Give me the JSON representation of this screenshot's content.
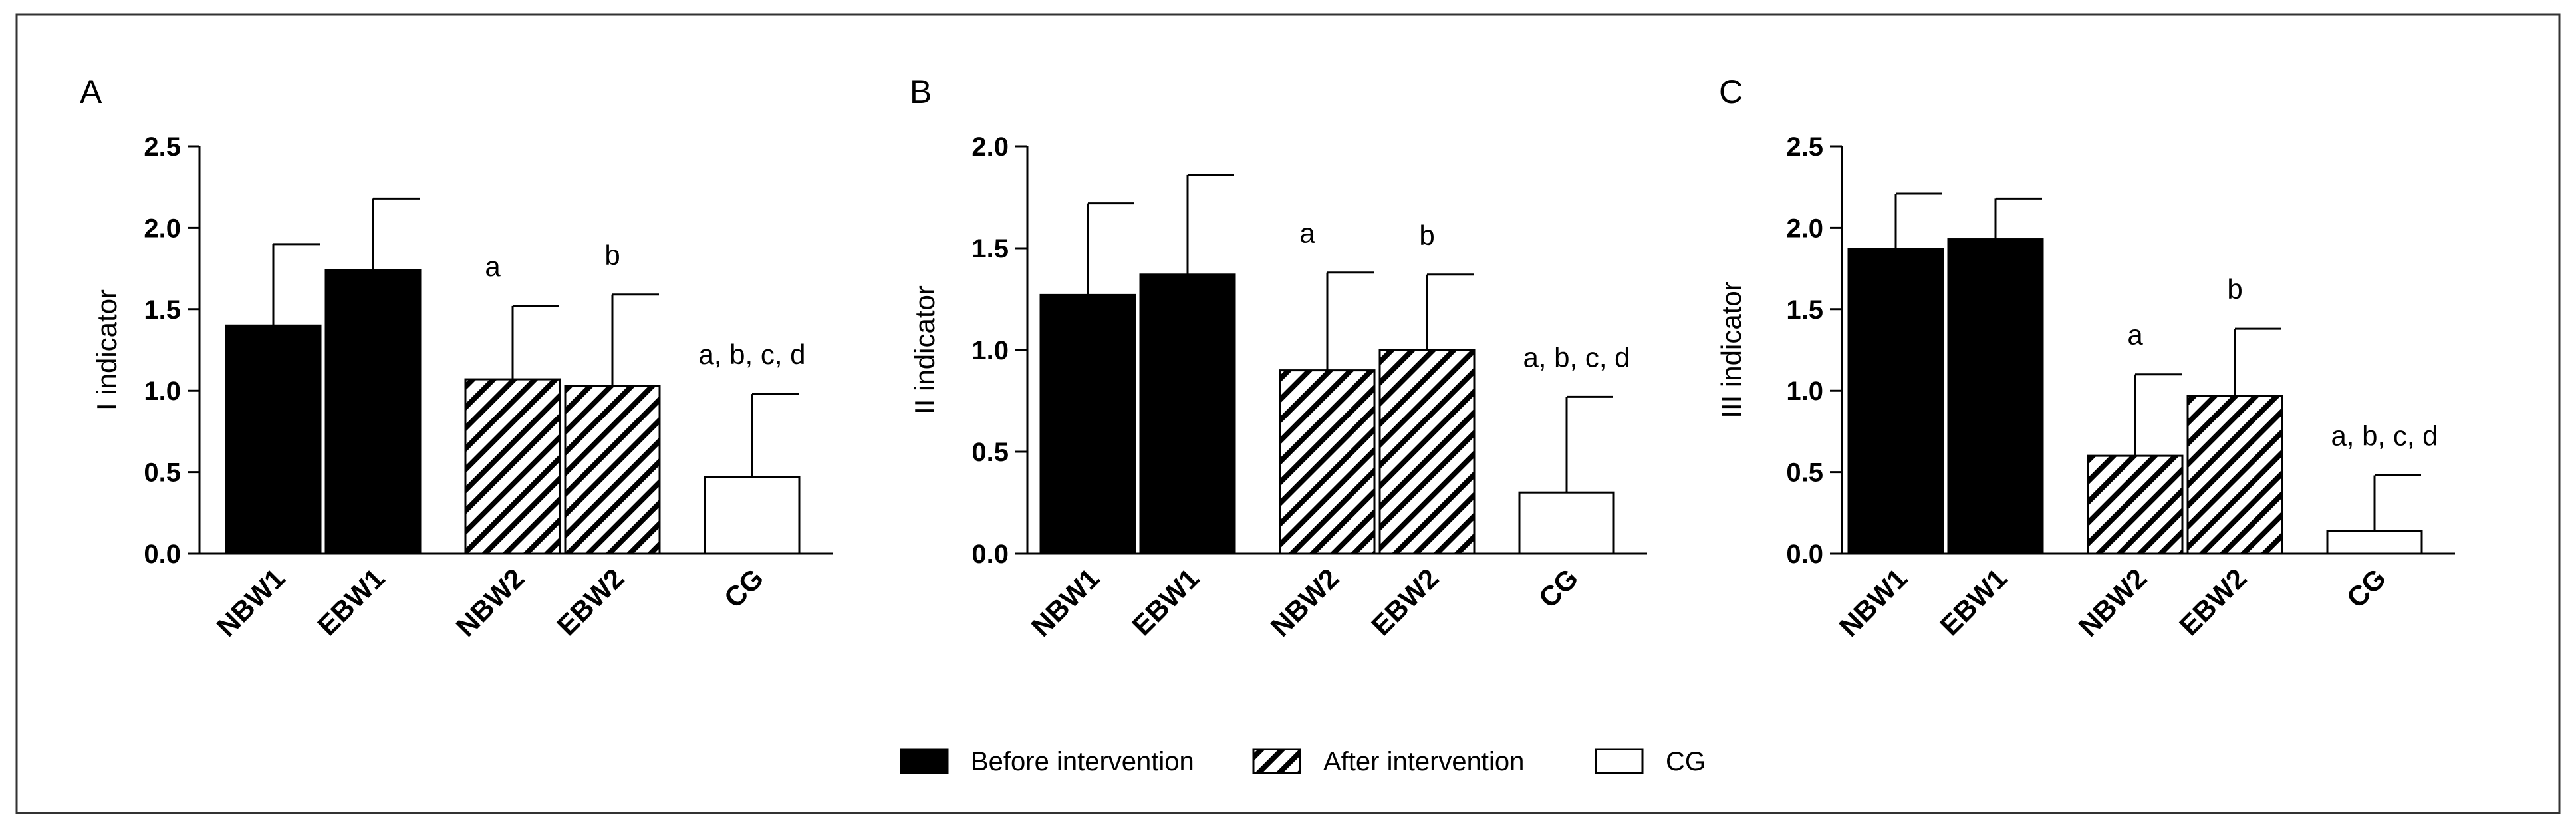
{
  "chart_data": [
    {
      "type": "bar",
      "panel": "A",
      "ylabel": "I indicator",
      "ylim": [
        0,
        2.5
      ],
      "yticks": [
        "0.0",
        "0.5",
        "1.0",
        "1.5",
        "2.0",
        "2.5"
      ],
      "categories": [
        "NBW1",
        "EBW1",
        "NBW2",
        "EBW2",
        "CG"
      ],
      "values": [
        1.4,
        1.74,
        1.07,
        1.03,
        0.47
      ],
      "error_upper": [
        1.9,
        2.18,
        1.52,
        1.59,
        0.98
      ],
      "fill": [
        "before",
        "before",
        "after",
        "after",
        "cg"
      ],
      "annotations": [
        "",
        "",
        "a",
        "b",
        "a, b, c, d"
      ]
    },
    {
      "type": "bar",
      "panel": "B",
      "ylabel": "II indicator",
      "ylim": [
        0,
        2.0
      ],
      "yticks": [
        "0.0",
        "0.5",
        "1.0",
        "1.5",
        "2.0"
      ],
      "categories": [
        "NBW1",
        "EBW1",
        "NBW2",
        "EBW2",
        "CG"
      ],
      "values": [
        1.27,
        1.37,
        0.9,
        1.0,
        0.3
      ],
      "error_upper": [
        1.72,
        1.86,
        1.38,
        1.37,
        0.77
      ],
      "fill": [
        "before",
        "before",
        "after",
        "after",
        "cg"
      ],
      "annotations": [
        "",
        "",
        "a",
        "b",
        "a, b, c, d"
      ]
    },
    {
      "type": "bar",
      "panel": "C",
      "ylabel": "III indicator",
      "ylim": [
        0,
        2.5
      ],
      "yticks": [
        "0.0",
        "0.5",
        "1.0",
        "1.5",
        "2.0",
        "2.5"
      ],
      "categories": [
        "NBW1",
        "EBW1",
        "NBW2",
        "EBW2",
        "CG"
      ],
      "values": [
        1.87,
        1.93,
        0.6,
        0.97,
        0.14
      ],
      "error_upper": [
        2.21,
        2.18,
        1.1,
        1.38,
        0.48
      ],
      "fill": [
        "before",
        "before",
        "after",
        "after",
        "cg"
      ],
      "annotations": [
        "",
        "",
        "a",
        "b",
        "a, b, c, d"
      ]
    }
  ],
  "legend": [
    {
      "key": "before",
      "label": "Before intervention"
    },
    {
      "key": "after",
      "label": "After intervention"
    },
    {
      "key": "cg",
      "label": "CG"
    }
  ]
}
